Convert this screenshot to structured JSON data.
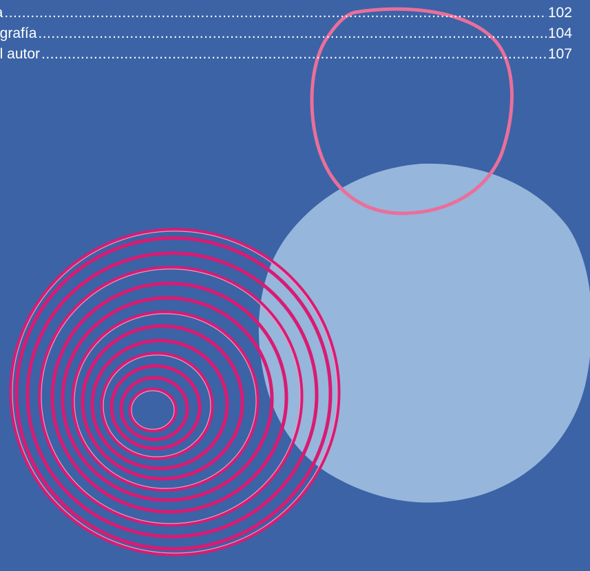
{
  "toc": {
    "entries": [
      {
        "label": "la",
        "page": "102"
      },
      {
        "label": "ografía",
        "page": "104"
      },
      {
        "label": "el autor",
        "page": "107"
      }
    ]
  },
  "colors": {
    "background": "#3b63a6",
    "light_blob": "#96b6dc",
    "pink_outline": "#ea6f9a",
    "magenta_spiral": "#d91b72",
    "text": "#ffffff"
  },
  "decorations": [
    "pink-circle-outline",
    "light-blue-blob",
    "magenta-spiral"
  ]
}
